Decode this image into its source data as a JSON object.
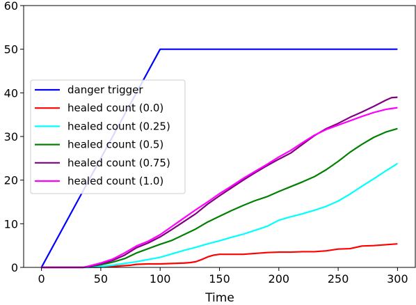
{
  "chart_data": {
    "type": "line",
    "title": "",
    "xlabel": "Time",
    "ylabel": "",
    "xlim": [
      -15,
      315
    ],
    "ylim": [
      0,
      60
    ],
    "x_ticks": [
      0,
      50,
      100,
      150,
      200,
      250,
      300
    ],
    "y_ticks": [
      0,
      10,
      20,
      30,
      40,
      50,
      60
    ],
    "grid": false,
    "legend_position": "center-left",
    "series": [
      {
        "name": "danger trigger",
        "color": "#0000ff",
        "points": [
          [
            0,
            0
          ],
          [
            100,
            50
          ],
          [
            300,
            50
          ]
        ]
      },
      {
        "name": "healed count (0.0)",
        "color": "#ff0000",
        "points": [
          [
            0,
            0
          ],
          [
            40,
            0
          ],
          [
            55,
            0.1
          ],
          [
            65,
            0.3
          ],
          [
            75,
            0.5
          ],
          [
            80,
            0.7
          ],
          [
            90,
            0.8
          ],
          [
            100,
            0.8
          ],
          [
            110,
            0.9
          ],
          [
            120,
            1.0
          ],
          [
            125,
            1.1
          ],
          [
            130,
            1.3
          ],
          [
            135,
            1.8
          ],
          [
            140,
            2.4
          ],
          [
            145,
            2.8
          ],
          [
            150,
            3.0
          ],
          [
            160,
            3.0
          ],
          [
            170,
            3.0
          ],
          [
            180,
            3.2
          ],
          [
            190,
            3.4
          ],
          [
            200,
            3.5
          ],
          [
            210,
            3.5
          ],
          [
            220,
            3.6
          ],
          [
            230,
            3.6
          ],
          [
            240,
            3.8
          ],
          [
            245,
            4.0
          ],
          [
            250,
            4.2
          ],
          [
            260,
            4.3
          ],
          [
            265,
            4.6
          ],
          [
            270,
            4.9
          ],
          [
            280,
            5.0
          ],
          [
            290,
            5.2
          ],
          [
            300,
            5.4
          ]
        ]
      },
      {
        "name": "healed count (0.25)",
        "color": "#00ffff",
        "points": [
          [
            0,
            0
          ],
          [
            40,
            0
          ],
          [
            50,
            0.2
          ],
          [
            60,
            0.5
          ],
          [
            70,
            0.9
          ],
          [
            80,
            1.3
          ],
          [
            90,
            1.8
          ],
          [
            100,
            2.3
          ],
          [
            110,
            3.1
          ],
          [
            120,
            3.9
          ],
          [
            130,
            4.6
          ],
          [
            140,
            5.4
          ],
          [
            150,
            6.1
          ],
          [
            160,
            6.9
          ],
          [
            170,
            7.6
          ],
          [
            180,
            8.5
          ],
          [
            190,
            9.4
          ],
          [
            200,
            10.8
          ],
          [
            210,
            11.6
          ],
          [
            220,
            12.3
          ],
          [
            230,
            13.1
          ],
          [
            240,
            14.0
          ],
          [
            250,
            15.2
          ],
          [
            260,
            16.8
          ],
          [
            270,
            18.6
          ],
          [
            280,
            20.3
          ],
          [
            290,
            22.1
          ],
          [
            300,
            23.8
          ]
        ]
      },
      {
        "name": "healed count (0.5)",
        "color": "#008000",
        "points": [
          [
            0,
            0
          ],
          [
            35,
            0
          ],
          [
            40,
            0.2
          ],
          [
            50,
            0.6
          ],
          [
            60,
            1.2
          ],
          [
            70,
            2.0
          ],
          [
            80,
            3.3
          ],
          [
            90,
            4.3
          ],
          [
            100,
            5.3
          ],
          [
            110,
            6.2
          ],
          [
            120,
            7.5
          ],
          [
            130,
            8.8
          ],
          [
            140,
            10.4
          ],
          [
            150,
            11.7
          ],
          [
            160,
            13.0
          ],
          [
            170,
            14.2
          ],
          [
            180,
            15.3
          ],
          [
            190,
            16.2
          ],
          [
            200,
            17.4
          ],
          [
            210,
            18.5
          ],
          [
            220,
            19.6
          ],
          [
            230,
            20.8
          ],
          [
            240,
            22.4
          ],
          [
            250,
            24.3
          ],
          [
            260,
            26.4
          ],
          [
            270,
            28.2
          ],
          [
            280,
            29.8
          ],
          [
            290,
            31.0
          ],
          [
            300,
            31.8
          ]
        ]
      },
      {
        "name": "healed count (0.75)",
        "color": "#800080",
        "points": [
          [
            0,
            0
          ],
          [
            35,
            0
          ],
          [
            40,
            0.2
          ],
          [
            50,
            0.8
          ],
          [
            60,
            1.6
          ],
          [
            70,
            2.8
          ],
          [
            80,
            4.5
          ],
          [
            90,
            5.6
          ],
          [
            100,
            7.0
          ],
          [
            110,
            8.7
          ],
          [
            120,
            10.5
          ],
          [
            130,
            12.3
          ],
          [
            140,
            14.5
          ],
          [
            150,
            16.4
          ],
          [
            160,
            18.2
          ],
          [
            170,
            20.0
          ],
          [
            180,
            21.7
          ],
          [
            190,
            23.3
          ],
          [
            200,
            24.8
          ],
          [
            210,
            26.2
          ],
          [
            220,
            28.2
          ],
          [
            230,
            30.2
          ],
          [
            240,
            31.8
          ],
          [
            250,
            33.0
          ],
          [
            260,
            34.4
          ],
          [
            270,
            35.6
          ],
          [
            280,
            36.9
          ],
          [
            290,
            38.3
          ],
          [
            295,
            38.9
          ],
          [
            300,
            39.0
          ]
        ]
      },
      {
        "name": "healed count (1.0)",
        "color": "#ff00ff",
        "points": [
          [
            0,
            0
          ],
          [
            35,
            0
          ],
          [
            40,
            0.3
          ],
          [
            50,
            1.0
          ],
          [
            60,
            1.9
          ],
          [
            70,
            3.3
          ],
          [
            80,
            4.9
          ],
          [
            90,
            6.0
          ],
          [
            100,
            7.5
          ],
          [
            110,
            9.4
          ],
          [
            120,
            11.3
          ],
          [
            130,
            13.2
          ],
          [
            140,
            15.0
          ],
          [
            150,
            16.9
          ],
          [
            160,
            18.6
          ],
          [
            170,
            20.4
          ],
          [
            180,
            22.0
          ],
          [
            190,
            23.6
          ],
          [
            200,
            25.3
          ],
          [
            210,
            26.8
          ],
          [
            220,
            28.6
          ],
          [
            230,
            30.3
          ],
          [
            240,
            31.6
          ],
          [
            250,
            32.6
          ],
          [
            260,
            33.6
          ],
          [
            270,
            34.6
          ],
          [
            280,
            35.5
          ],
          [
            290,
            36.2
          ],
          [
            300,
            36.6
          ]
        ]
      }
    ]
  }
}
